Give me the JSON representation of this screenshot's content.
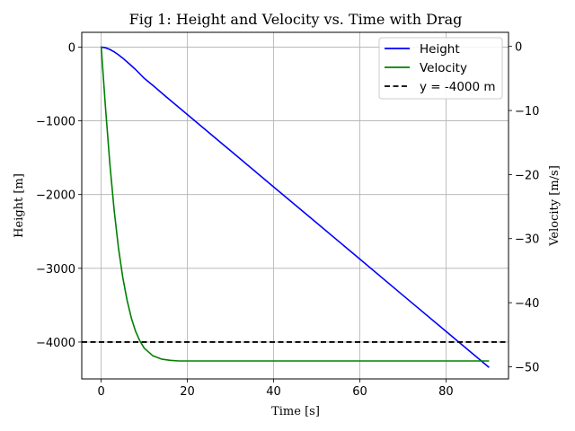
{
  "chart_data": {
    "type": "line",
    "title": "Fig 1: Height and Velocity vs. Time with Drag",
    "xlabel": "Time [s]",
    "ylabel": "Height [m]",
    "y2label": "Velocity [m/s]",
    "xlim": [
      -4.5,
      94.5
    ],
    "ylim": [
      -4500,
      200
    ],
    "y2lim": [
      -51.9,
      2.2
    ],
    "xticks": [
      0,
      20,
      40,
      60,
      80
    ],
    "yticks": [
      0,
      -1000,
      -2000,
      -3000,
      -4000
    ],
    "y2ticks": [
      0,
      -10,
      -20,
      -30,
      -40,
      -50
    ],
    "grid": true,
    "legend_position": "top-right",
    "series": [
      {
        "name": "Height",
        "axis": "left",
        "color": "#0000ff",
        "x": [
          0,
          1,
          2,
          3,
          4,
          5,
          6,
          8,
          10,
          12,
          15,
          20,
          30,
          40,
          50,
          60,
          70,
          80,
          90
        ],
        "y": [
          0,
          -9,
          -31,
          -64,
          -104,
          -150,
          -200,
          -305,
          -425,
          -520,
          -670,
          -915,
          -1405,
          -1895,
          -2385,
          -2875,
          -3365,
          -3855,
          -4345
        ]
      },
      {
        "name": "Velocity",
        "axis": "right",
        "color": "#008000",
        "x": [
          0,
          1,
          2,
          3,
          4,
          5,
          6,
          7,
          8,
          9,
          10,
          12,
          14,
          16,
          18,
          20,
          30,
          40,
          50,
          60,
          70,
          80,
          90
        ],
        "y": [
          0,
          -9.5,
          -18.2,
          -25.5,
          -31.4,
          -36.0,
          -39.6,
          -42.4,
          -44.5,
          -46.0,
          -47.1,
          -48.3,
          -48.8,
          -49.0,
          -49.1,
          -49.1,
          -49.1,
          -49.1,
          -49.1,
          -49.1,
          -49.1,
          -49.1,
          -49.1
        ]
      },
      {
        "name": "y = -4000 m",
        "axis": "left",
        "color": "#000000",
        "style": "dashed",
        "y": -4000
      }
    ]
  }
}
